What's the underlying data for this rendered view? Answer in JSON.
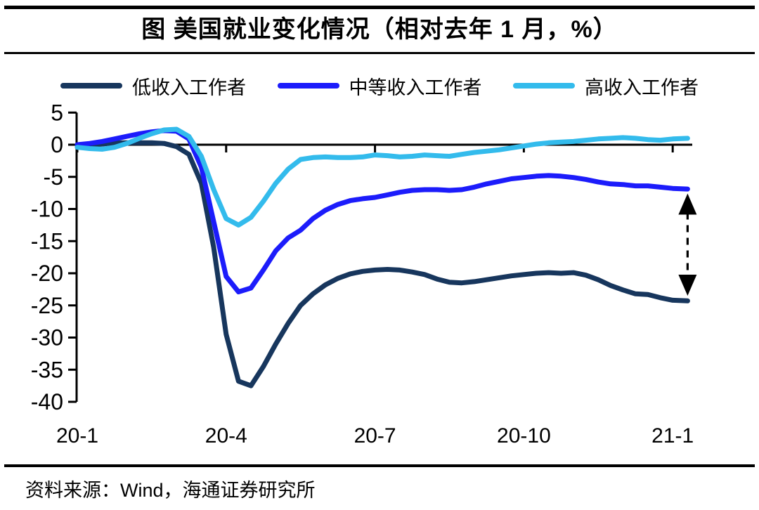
{
  "title": "图  美国就业变化情况（相对去年 1 月，%）",
  "legend": [
    {
      "label": "低收入工作者",
      "color": "#17365D"
    },
    {
      "label": "中等收入工作者",
      "color": "#1C1CFB"
    },
    {
      "label": "高收入工作者",
      "color": "#33BBEC"
    }
  ],
  "source": "资料来源：Wind，海通证券研究所",
  "chart_data": {
    "type": "line",
    "title": "美国就业变化情况（相对去年1月，%）",
    "xlabel": "",
    "ylabel": "",
    "x_unit": "months since 2020-01",
    "ylim": [
      -40,
      5
    ],
    "y_ticks": [
      5,
      0,
      -5,
      -10,
      -15,
      -20,
      -25,
      -30,
      -35,
      -40
    ],
    "x_tick_labels": [
      "20-1",
      "20-4",
      "20-7",
      "20-10",
      "21-1"
    ],
    "x_tick_positions": [
      0,
      3,
      6,
      9,
      12
    ],
    "grid": false,
    "legend_position": "top",
    "x": [
      0,
      0.25,
      0.5,
      0.75,
      1,
      1.25,
      1.5,
      1.75,
      2,
      2.25,
      2.5,
      2.75,
      3,
      3.25,
      3.5,
      3.75,
      4,
      4.25,
      4.5,
      4.75,
      5,
      5.25,
      5.5,
      5.75,
      6,
      6.25,
      6.5,
      6.75,
      7,
      7.25,
      7.5,
      7.75,
      8,
      8.25,
      8.5,
      8.75,
      9,
      9.25,
      9.5,
      9.75,
      10,
      10.25,
      10.5,
      10.75,
      11,
      11.25,
      11.5,
      11.75,
      12,
      12.3
    ],
    "series": [
      {
        "name": "低收入工作者",
        "color": "#17365D",
        "values": [
          -0.4,
          -0.1,
          0.1,
          0.3,
          0.3,
          0.3,
          0.3,
          0.2,
          -0.3,
          -1.5,
          -6,
          -16,
          -29.5,
          -36.8,
          -37.5,
          -34.5,
          -31,
          -27.8,
          -25,
          -23.2,
          -21.8,
          -20.8,
          -20.1,
          -19.7,
          -19.5,
          -19.4,
          -19.5,
          -19.8,
          -20.2,
          -20.9,
          -21.4,
          -21.5,
          -21.3,
          -21,
          -20.7,
          -20.4,
          -20.2,
          -20,
          -19.9,
          -20,
          -19.9,
          -20.3,
          -21,
          -21.9,
          -22.6,
          -23.2,
          -23.3,
          -23.8,
          -24.2,
          -24.3
        ]
      },
      {
        "name": "中等收入工作者",
        "color": "#1C1CFB",
        "values": [
          0,
          0.2,
          0.5,
          0.9,
          1.3,
          1.7,
          2,
          2.2,
          2.1,
          0.9,
          -3.5,
          -12,
          -20.5,
          -22.9,
          -22.3,
          -19.5,
          -16.5,
          -14.5,
          -13.3,
          -11.5,
          -10.2,
          -9.3,
          -8.7,
          -8.4,
          -8.2,
          -7.8,
          -7.4,
          -7.1,
          -7,
          -7,
          -7.1,
          -7,
          -6.6,
          -6.1,
          -5.7,
          -5.3,
          -5.1,
          -4.9,
          -4.8,
          -4.9,
          -5.1,
          -5.4,
          -5.8,
          -6.1,
          -6.2,
          -6.4,
          -6.4,
          -6.6,
          -6.8,
          -6.9
        ]
      },
      {
        "name": "高收入工作者",
        "color": "#33BBEC",
        "values": [
          -0.4,
          -0.6,
          -0.7,
          -0.4,
          0.2,
          1,
          1.7,
          2.3,
          2.4,
          1.3,
          -1.8,
          -7,
          -11.5,
          -12.5,
          -11.3,
          -8.8,
          -6,
          -3.8,
          -2.3,
          -2,
          -1.9,
          -2,
          -2,
          -1.9,
          -1.6,
          -1.7,
          -1.9,
          -1.8,
          -1.6,
          -1.7,
          -1.8,
          -1.5,
          -1.2,
          -1,
          -0.8,
          -0.5,
          -0.2,
          0.1,
          0.3,
          0.4,
          0.5,
          0.7,
          0.9,
          1,
          1.1,
          1,
          0.8,
          0.7,
          0.9,
          1
        ]
      }
    ],
    "annotation": {
      "type": "dashed-double-arrow",
      "x": 12.3,
      "y_from": -7.6,
      "y_to": -23.5
    }
  }
}
